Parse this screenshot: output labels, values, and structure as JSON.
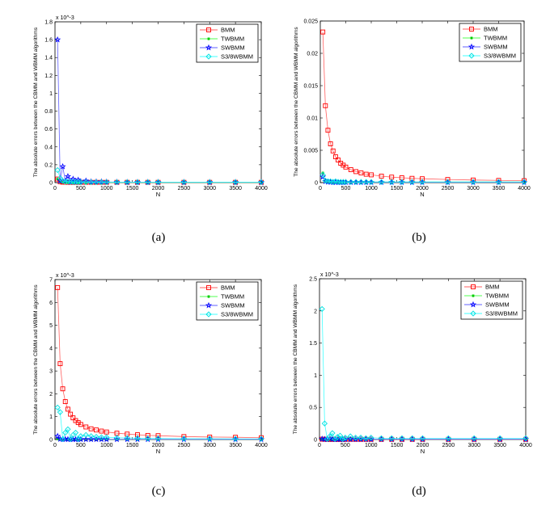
{
  "chart_data": [
    {
      "type": "line",
      "caption": "(a)",
      "xlabel": "N",
      "ylabel": "The absolute errors between the CBMM and WBMM algorithms",
      "y_multiplier_label": "x 10^-3",
      "xlim": [
        0,
        4000
      ],
      "ylim": [
        0,
        1.8
      ],
      "xticks": [
        0,
        500,
        1000,
        1500,
        2000,
        2500,
        3000,
        3500,
        4000
      ],
      "yticks": [
        0,
        0.2,
        0.4,
        0.6,
        0.8,
        1,
        1.2,
        1.4,
        1.6,
        1.8
      ],
      "legend": "top-right",
      "grid": false,
      "x": [
        50,
        100,
        150,
        200,
        250,
        300,
        350,
        400,
        450,
        500,
        600,
        700,
        800,
        900,
        1000,
        1200,
        1400,
        1600,
        1800,
        2000,
        2500,
        3000,
        3500,
        4000
      ],
      "series": [
        {
          "name": "BMM",
          "values": [
            0.04,
            0.01,
            0.005,
            0.004,
            0.003,
            0.003,
            0.003,
            0.003,
            0.003,
            0.003,
            0.003,
            0.003,
            0.003,
            0.003,
            0.003,
            0.003,
            0.003,
            0.003,
            0.003,
            0.003,
            0.003,
            0.003,
            0.003,
            0.003
          ]
        },
        {
          "name": "TWBMM",
          "values": [
            0.04,
            0.01,
            0.003,
            0.002,
            0.002,
            0.002,
            0.002,
            0.002,
            0.002,
            0.002,
            0.002,
            0.002,
            0.002,
            0.002,
            0.002,
            0.002,
            0.002,
            0.002,
            0.002,
            0.002,
            0.002,
            0.002,
            0.002,
            0.002
          ]
        },
        {
          "name": "SWBMM",
          "values": [
            1.6,
            0.02,
            0.18,
            0.02,
            0.07,
            0.01,
            0.04,
            0.01,
            0.03,
            0.01,
            0.02,
            0.01,
            0.01,
            0.01,
            0.008,
            0.006,
            0.005,
            0.005,
            0.005,
            0.005,
            0.005,
            0.005,
            0.005,
            0.005
          ]
        },
        {
          "name": "S3/8WBMM",
          "values": [
            0.14,
            0.05,
            0.02,
            0.01,
            0.01,
            0.008,
            0.008,
            0.006,
            0.006,
            0.005,
            0.005,
            0.005,
            0.005,
            0.005,
            0.005,
            0.005,
            0.005,
            0.005,
            0.005,
            0.005,
            0.005,
            0.005,
            0.005,
            0.005
          ]
        }
      ]
    },
    {
      "type": "line",
      "caption": "(b)",
      "xlabel": "N",
      "ylabel": "The absolute errors between the CBMM and WBMM algorithms",
      "y_multiplier_label": "",
      "xlim": [
        0,
        4000
      ],
      "ylim": [
        0,
        0.025
      ],
      "xticks": [
        0,
        500,
        1000,
        1500,
        2000,
        2500,
        3000,
        3500,
        4000
      ],
      "yticks": [
        0,
        0.005,
        0.01,
        0.015,
        0.02,
        0.025
      ],
      "legend": "top-right",
      "grid": false,
      "x": [
        50,
        100,
        150,
        200,
        250,
        300,
        350,
        400,
        450,
        500,
        600,
        700,
        800,
        900,
        1000,
        1200,
        1400,
        1600,
        1800,
        2000,
        2500,
        3000,
        3500,
        4000
      ],
      "series": [
        {
          "name": "BMM",
          "values": [
            0.0233,
            0.0119,
            0.0081,
            0.006,
            0.0049,
            0.004,
            0.0035,
            0.003,
            0.0027,
            0.0024,
            0.002,
            0.0017,
            0.0015,
            0.0013,
            0.0012,
            0.001,
            0.00085,
            0.00075,
            0.00066,
            0.0006,
            0.00048,
            0.0004,
            0.00034,
            0.0003
          ]
        },
        {
          "name": "TWBMM",
          "values": [
            0.0015,
            0.0003,
            0.0002,
            0.00015,
            0.0001,
            0.0001,
            0.0001,
            0.0001,
            0.0001,
            0.0001,
            0.0001,
            0.0001,
            0.0001,
            0.0001,
            0.0001,
            0.0001,
            0.0001,
            0.0001,
            0.0001,
            0.0001,
            0.0001,
            0.0001,
            0.0001,
            0.0001
          ]
        },
        {
          "name": "SWBMM",
          "values": [
            0.0009,
            0.0002,
            0.0001,
            0.0001,
            5e-05,
            5e-05,
            5e-05,
            5e-05,
            5e-05,
            5e-05,
            5e-05,
            5e-05,
            5e-05,
            5e-05,
            5e-05,
            5e-05,
            5e-05,
            5e-05,
            5e-05,
            5e-05,
            5e-05,
            5e-05,
            5e-05,
            5e-05
          ]
        },
        {
          "name": "S3/8WBMM",
          "values": [
            0.0012,
            0.0003,
            0.0002,
            0.0002,
            0.0001,
            0.0002,
            0.0001,
            0.0001,
            0.0001,
            0.0001,
            0.0001,
            0.0001,
            0.0001,
            0.0001,
            0.0001,
            0.0001,
            0.0001,
            0.0001,
            0.0001,
            0.0001,
            0.0001,
            0.0001,
            0.0001,
            0.0001
          ]
        }
      ]
    },
    {
      "type": "line",
      "caption": "(c)",
      "xlabel": "N",
      "ylabel": "The absolute errors between the CBMM and WBMM algorithms",
      "y_multiplier_label": "x 10^-3",
      "xlim": [
        0,
        4000
      ],
      "ylim": [
        0,
        7
      ],
      "xticks": [
        0,
        500,
        1000,
        1500,
        2000,
        2500,
        3000,
        3500,
        4000
      ],
      "yticks": [
        0,
        1,
        2,
        3,
        4,
        5,
        6,
        7
      ],
      "legend": "top-right",
      "grid": false,
      "x": [
        50,
        100,
        150,
        200,
        250,
        300,
        350,
        400,
        450,
        500,
        600,
        700,
        800,
        900,
        1000,
        1200,
        1400,
        1600,
        1800,
        2000,
        2500,
        3000,
        3500,
        4000
      ],
      "series": [
        {
          "name": "BMM",
          "values": [
            6.65,
            3.32,
            2.22,
            1.66,
            1.33,
            1.11,
            0.95,
            0.83,
            0.74,
            0.66,
            0.55,
            0.47,
            0.42,
            0.37,
            0.33,
            0.28,
            0.24,
            0.21,
            0.18,
            0.17,
            0.13,
            0.11,
            0.1,
            0.08
          ]
        },
        {
          "name": "TWBMM",
          "values": [
            0.03,
            0.01,
            0.01,
            0.01,
            0.01,
            0.01,
            0.01,
            0.01,
            0.01,
            0.01,
            0.01,
            0.01,
            0.01,
            0.01,
            0.01,
            0.01,
            0.01,
            0.01,
            0.01,
            0.01,
            0.01,
            0.01,
            0.01,
            0.01
          ]
        },
        {
          "name": "SWBMM",
          "values": [
            0.15,
            0.02,
            0.01,
            0.02,
            0.01,
            0.01,
            0.01,
            0.01,
            0.01,
            0.01,
            0.01,
            0.01,
            0.01,
            0.01,
            0.01,
            0.01,
            0.01,
            0.01,
            0.01,
            0.01,
            0.01,
            0.01,
            0.01,
            0.01
          ]
        },
        {
          "name": "S3/8WBMM",
          "values": [
            1.4,
            1.2,
            0.02,
            0.3,
            0.45,
            0.02,
            0.2,
            0.3,
            0.02,
            0.15,
            0.2,
            0.15,
            0.12,
            0.1,
            0.1,
            0.08,
            0.07,
            0.06,
            0.05,
            0.05,
            0.04,
            0.04,
            0.03,
            0.03
          ]
        }
      ]
    },
    {
      "type": "line",
      "caption": "(d)",
      "xlabel": "N",
      "ylabel": "The absolute errors between the CBMM and WBMM algorithms",
      "y_multiplier_label": "x 10^-3",
      "xlim": [
        0,
        4000
      ],
      "ylim": [
        0,
        2.5
      ],
      "xticks": [
        0,
        500,
        1000,
        1500,
        2000,
        2500,
        3000,
        3500,
        4000
      ],
      "yticks": [
        0,
        0.5,
        1,
        1.5,
        2,
        2.5
      ],
      "legend": "top-right",
      "grid": false,
      "x": [
        50,
        100,
        150,
        200,
        250,
        300,
        350,
        400,
        450,
        500,
        600,
        700,
        800,
        900,
        1000,
        1200,
        1400,
        1600,
        1800,
        2000,
        2500,
        3000,
        3500,
        4000
      ],
      "series": [
        {
          "name": "BMM",
          "values": [
            0.005,
            0.004,
            0.003,
            0.003,
            0.003,
            0.003,
            0.003,
            0.003,
            0.003,
            0.003,
            0.003,
            0.003,
            0.003,
            0.003,
            0.003,
            0.003,
            0.003,
            0.003,
            0.003,
            0.003,
            0.003,
            0.003,
            0.003,
            0.003
          ]
        },
        {
          "name": "TWBMM",
          "values": [
            0.005,
            0.004,
            0.003,
            0.003,
            0.003,
            0.003,
            0.003,
            0.003,
            0.003,
            0.003,
            0.003,
            0.003,
            0.003,
            0.003,
            0.003,
            0.003,
            0.003,
            0.003,
            0.003,
            0.003,
            0.003,
            0.003,
            0.003,
            0.003
          ]
        },
        {
          "name": "SWBMM",
          "values": [
            0.01,
            0.005,
            0.004,
            0.02,
            0.004,
            0.004,
            0.004,
            0.004,
            0.004,
            0.004,
            0.004,
            0.004,
            0.004,
            0.004,
            0.004,
            0.004,
            0.004,
            0.004,
            0.004,
            0.004,
            0.004,
            0.004,
            0.004,
            0.004
          ]
        },
        {
          "name": "S3/8WBMM",
          "values": [
            2.03,
            0.25,
            0.01,
            0.05,
            0.1,
            0.01,
            0.04,
            0.06,
            0.01,
            0.03,
            0.05,
            0.03,
            0.03,
            0.02,
            0.03,
            0.02,
            0.02,
            0.02,
            0.02,
            0.02,
            0.02,
            0.02,
            0.02,
            0.02
          ]
        }
      ]
    }
  ],
  "series_styles": {
    "BMM": {
      "color": "#ff0000",
      "line": "#ff6060",
      "marker": "square"
    },
    "TWBMM": {
      "color": "#00cc00",
      "line": "#50ff50",
      "marker": "asterisk"
    },
    "SWBMM": {
      "color": "#0000ff",
      "line": "#6060ff",
      "marker": "star"
    },
    "S3/8WBMM": {
      "color": "#00e0e0",
      "line": "#40ffff",
      "marker": "diamond"
    }
  }
}
